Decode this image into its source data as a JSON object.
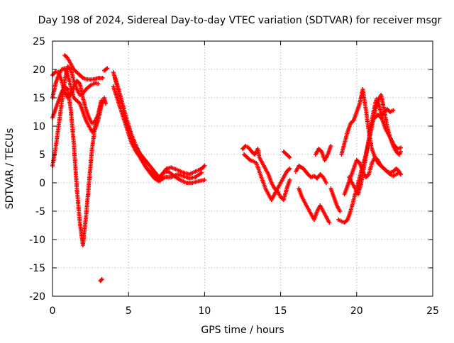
{
  "chart_data": {
    "type": "scatter",
    "title": "Day 198 of 2024, Sidereal Day-to-day VTEC variation (SDTVAR) for receiver msgr",
    "xlabel": "GPS time / hours",
    "ylabel": "SDTVAR / TECUs",
    "xlim": [
      0,
      25
    ],
    "ylim": [
      -20,
      25
    ],
    "xticks": [
      0,
      5,
      10,
      15,
      20,
      25
    ],
    "yticks": [
      -20,
      -15,
      -10,
      -5,
      0,
      5,
      10,
      15,
      20,
      25
    ],
    "grid": true,
    "marker": "+",
    "color": "#ff0000",
    "series": [
      {
        "name": "trace-1",
        "points": [
          [
            0.0,
            3.0
          ],
          [
            0.2,
            6.0
          ],
          [
            0.4,
            10.0
          ],
          [
            0.6,
            14.0
          ],
          [
            0.8,
            18.0
          ],
          [
            1.0,
            20.5
          ],
          [
            1.2,
            20.0
          ],
          [
            1.4,
            18.0
          ],
          [
            1.6,
            16.5
          ],
          [
            1.8,
            15.5
          ],
          [
            2.0,
            15.8
          ],
          [
            2.2,
            16.5
          ],
          [
            2.5,
            17.2
          ],
          [
            2.8,
            17.6
          ],
          [
            3.0,
            17.5
          ]
        ]
      },
      {
        "name": "trace-2",
        "points": [
          [
            0.0,
            11.5
          ],
          [
            0.2,
            13.0
          ],
          [
            0.4,
            14.5
          ],
          [
            0.6,
            16.0
          ],
          [
            0.8,
            17.0
          ],
          [
            1.0,
            16.5
          ],
          [
            1.2,
            13.0
          ],
          [
            1.3,
            10.0
          ],
          [
            1.4,
            7.0
          ],
          [
            1.5,
            3.0
          ],
          [
            1.6,
            -1.0
          ],
          [
            1.7,
            -4.0
          ],
          [
            1.8,
            -7.0
          ],
          [
            1.9,
            -9.0
          ],
          [
            2.0,
            -11.0
          ],
          [
            2.2,
            -6.0
          ],
          [
            2.4,
            0.0
          ],
          [
            2.6,
            6.0
          ],
          [
            2.8,
            10.0
          ],
          [
            3.0,
            12.0
          ],
          [
            3.2,
            14.5
          ]
        ]
      },
      {
        "name": "trace-3",
        "points": [
          [
            0.0,
            15.0
          ],
          [
            0.2,
            17.5
          ],
          [
            0.4,
            19.0
          ],
          [
            0.6,
            20.0
          ],
          [
            0.8,
            20.2
          ],
          [
            1.0,
            19.0
          ],
          [
            1.2,
            17.0
          ],
          [
            1.4,
            15.0
          ],
          [
            1.6,
            14.5
          ],
          [
            1.8,
            14.0
          ],
          [
            2.0,
            12.5
          ],
          [
            2.2,
            11.0
          ],
          [
            2.4,
            10.0
          ],
          [
            2.6,
            9.0
          ],
          [
            2.8,
            9.5
          ],
          [
            3.0,
            11.0
          ],
          [
            3.2,
            13.5
          ],
          [
            3.4,
            15.0
          ],
          [
            3.5,
            14.0
          ]
        ]
      },
      {
        "name": "trace-4",
        "points": [
          [
            0.0,
            19.0
          ],
          [
            0.2,
            19.6
          ],
          [
            0.4,
            19.5
          ],
          [
            0.6,
            18.0
          ],
          [
            0.8,
            16.0
          ],
          [
            1.0,
            15.0
          ],
          [
            1.2,
            15.5
          ],
          [
            1.4,
            17.0
          ],
          [
            1.6,
            18.0
          ],
          [
            1.8,
            17.5
          ],
          [
            2.0,
            15.0
          ],
          [
            2.2,
            13.0
          ],
          [
            2.4,
            11.5
          ],
          [
            2.6,
            10.5
          ],
          [
            2.8,
            10.8
          ],
          [
            3.0,
            12.0
          ],
          [
            3.2,
            14.0
          ]
        ]
      },
      {
        "name": "trace-5",
        "points": [
          [
            0.8,
            22.5
          ],
          [
            1.0,
            22.0
          ],
          [
            1.2,
            21.0
          ],
          [
            1.4,
            20.0
          ],
          [
            1.6,
            19.5
          ],
          [
            1.8,
            19.0
          ],
          [
            2.0,
            18.5
          ],
          [
            2.2,
            18.3
          ],
          [
            2.5,
            18.2
          ],
          [
            2.8,
            18.3
          ],
          [
            3.0,
            18.5
          ],
          [
            3.3,
            18.5
          ]
        ]
      },
      {
        "name": "trace-6",
        "points": [
          [
            3.4,
            19.8
          ],
          [
            3.6,
            20.2
          ]
        ]
      },
      {
        "name": "trace-7",
        "points": [
          [
            3.15,
            -17.3
          ],
          [
            3.25,
            -17.0
          ]
        ]
      },
      {
        "name": "trace-8",
        "points": [
          [
            4.0,
            19.5
          ],
          [
            4.3,
            17.0
          ],
          [
            4.6,
            14.0
          ],
          [
            4.9,
            11.0
          ],
          [
            5.2,
            8.5
          ],
          [
            5.5,
            6.5
          ],
          [
            5.8,
            5.0
          ],
          [
            6.1,
            4.0
          ],
          [
            6.4,
            3.0
          ],
          [
            6.7,
            2.0
          ],
          [
            7.0,
            1.0
          ],
          [
            7.2,
            1.5
          ],
          [
            7.5,
            2.5
          ],
          [
            7.8,
            2.7
          ],
          [
            8.2,
            2.3
          ],
          [
            8.6,
            1.8
          ],
          [
            9.0,
            1.5
          ],
          [
            9.4,
            2.0
          ],
          [
            9.8,
            2.5
          ],
          [
            10.0,
            3.0
          ]
        ]
      },
      {
        "name": "trace-9",
        "points": [
          [
            4.1,
            18.5
          ],
          [
            4.4,
            15.5
          ],
          [
            4.7,
            12.5
          ],
          [
            5.0,
            9.5
          ],
          [
            5.3,
            7.0
          ],
          [
            5.6,
            5.2
          ],
          [
            5.9,
            3.8
          ],
          [
            6.2,
            2.5
          ],
          [
            6.5,
            1.8
          ],
          [
            6.8,
            1.0
          ],
          [
            7.0,
            0.5
          ],
          [
            7.3,
            1.8
          ],
          [
            7.6,
            2.0
          ],
          [
            8.0,
            1.2
          ],
          [
            8.4,
            0.5
          ],
          [
            8.8,
            0.0
          ],
          [
            9.2,
            0.0
          ],
          [
            9.6,
            0.3
          ],
          [
            10.0,
            0.5
          ]
        ]
      },
      {
        "name": "trace-10",
        "points": [
          [
            4.0,
            17.0
          ],
          [
            4.3,
            14.5
          ],
          [
            4.6,
            12.0
          ],
          [
            4.9,
            9.5
          ],
          [
            5.2,
            7.0
          ],
          [
            5.5,
            5.5
          ],
          [
            5.8,
            4.5
          ],
          [
            6.1,
            3.0
          ],
          [
            6.4,
            1.8
          ],
          [
            6.7,
            0.8
          ],
          [
            7.0,
            0.3
          ],
          [
            7.4,
            1.0
          ],
          [
            7.8,
            1.0
          ],
          [
            8.2,
            1.5
          ],
          [
            8.6,
            1.2
          ],
          [
            9.0,
            0.8
          ],
          [
            9.4,
            1.0
          ],
          [
            9.8,
            1.8
          ]
        ]
      },
      {
        "name": "trace-11",
        "points": [
          [
            12.5,
            6.0
          ],
          [
            12.7,
            6.5
          ],
          [
            12.9,
            6.2
          ],
          [
            13.1,
            5.5
          ],
          [
            13.3,
            5.0
          ],
          [
            13.5,
            6.0
          ],
          [
            13.6,
            4.5
          ],
          [
            13.8,
            3.5
          ],
          [
            14.0,
            2.5
          ],
          [
            14.2,
            1.5
          ],
          [
            14.4,
            0.0
          ],
          [
            14.6,
            -1.0
          ],
          [
            14.8,
            -1.5
          ],
          [
            15.0,
            -2.5
          ],
          [
            15.2,
            -3.0
          ],
          [
            15.4,
            -1.0
          ],
          [
            15.6,
            0.5
          ]
        ]
      },
      {
        "name": "trace-12",
        "points": [
          [
            12.6,
            5.0
          ],
          [
            12.8,
            4.5
          ],
          [
            13.0,
            4.0
          ],
          [
            13.2,
            3.8
          ],
          [
            13.4,
            3.5
          ],
          [
            14.0,
            -1.0
          ],
          [
            14.2,
            -2.0
          ],
          [
            14.4,
            -3.0
          ],
          [
            14.6,
            -2.0
          ],
          [
            14.8,
            -1.0
          ],
          [
            15.0,
            0.0
          ],
          [
            15.2,
            1.0
          ],
          [
            15.4,
            2.0
          ],
          [
            15.6,
            2.5
          ]
        ]
      },
      {
        "name": "trace-13",
        "points": [
          [
            15.2,
            5.5
          ],
          [
            15.4,
            5.0
          ],
          [
            15.6,
            4.5
          ]
        ]
      },
      {
        "name": "trace-14",
        "points": [
          [
            16.0,
            2.0
          ],
          [
            16.2,
            3.0
          ],
          [
            16.5,
            2.5
          ],
          [
            16.8,
            1.5
          ],
          [
            17.0,
            1.0
          ],
          [
            17.2,
            1.2
          ],
          [
            17.4,
            0.8
          ],
          [
            17.6,
            1.5
          ],
          [
            17.8,
            1.0
          ],
          [
            18.0,
            0.0
          ]
        ]
      },
      {
        "name": "trace-15",
        "points": [
          [
            16.2,
            -1.0
          ],
          [
            16.4,
            -2.5
          ],
          [
            16.6,
            -3.5
          ],
          [
            16.8,
            -4.5
          ],
          [
            17.0,
            -5.5
          ],
          [
            17.2,
            -6.5
          ],
          [
            17.4,
            -5.0
          ],
          [
            17.6,
            -4.0
          ],
          [
            17.8,
            -5.0
          ],
          [
            18.0,
            -6.0
          ],
          [
            18.2,
            -7.0
          ]
        ]
      },
      {
        "name": "trace-16",
        "points": [
          [
            17.3,
            5.0
          ],
          [
            17.5,
            6.0
          ],
          [
            17.7,
            5.5
          ],
          [
            17.9,
            4.0
          ],
          [
            18.1,
            5.0
          ],
          [
            18.3,
            6.5
          ]
        ]
      },
      {
        "name": "trace-17",
        "points": [
          [
            18.3,
            -1.0
          ],
          [
            18.5,
            -2.5
          ],
          [
            18.7,
            -4.0
          ],
          [
            18.9,
            -5.0
          ]
        ]
      },
      {
        "name": "trace-18",
        "points": [
          [
            18.8,
            -6.5
          ],
          [
            19.0,
            -6.8
          ],
          [
            19.2,
            -7.0
          ],
          [
            19.4,
            -6.5
          ],
          [
            19.6,
            -5.0
          ],
          [
            19.8,
            -3.0
          ],
          [
            20.0,
            -1.0
          ],
          [
            20.2,
            1.0
          ],
          [
            20.4,
            3.0
          ],
          [
            20.6,
            5.0
          ],
          [
            20.8,
            7.5
          ],
          [
            21.0,
            10.0
          ],
          [
            21.2,
            12.5
          ],
          [
            21.4,
            14.5
          ],
          [
            21.6,
            15.5
          ],
          [
            21.8,
            13.0
          ],
          [
            22.0,
            10.0
          ],
          [
            22.2,
            8.0
          ],
          [
            22.4,
            6.5
          ],
          [
            22.6,
            5.5
          ],
          [
            22.8,
            5.0
          ],
          [
            22.9,
            5.5
          ]
        ]
      },
      {
        "name": "trace-19",
        "points": [
          [
            19.0,
            5.0
          ],
          [
            19.2,
            7.0
          ],
          [
            19.4,
            9.0
          ],
          [
            19.6,
            10.5
          ],
          [
            19.8,
            11.0
          ],
          [
            20.0,
            12.5
          ],
          [
            20.2,
            14.0
          ],
          [
            20.4,
            16.5
          ],
          [
            20.6,
            13.0
          ],
          [
            20.8,
            9.0
          ],
          [
            21.0,
            6.0
          ],
          [
            21.2,
            4.5
          ],
          [
            21.4,
            3.5
          ],
          [
            21.6,
            3.0
          ],
          [
            21.8,
            2.5
          ],
          [
            22.0,
            2.0
          ],
          [
            22.2,
            1.8
          ],
          [
            22.4,
            2.0
          ],
          [
            22.6,
            2.5
          ],
          [
            22.8,
            2.0
          ]
        ]
      },
      {
        "name": "trace-20",
        "points": [
          [
            19.5,
            1.0
          ],
          [
            19.7,
            0.0
          ],
          [
            19.9,
            -1.0
          ],
          [
            20.1,
            -2.0
          ],
          [
            20.3,
            0.0
          ],
          [
            20.5,
            3.0
          ],
          [
            20.7,
            6.0
          ],
          [
            20.9,
            9.5
          ],
          [
            21.1,
            12.5
          ],
          [
            21.3,
            14.8
          ],
          [
            21.5,
            13.5
          ],
          [
            21.7,
            11.0
          ],
          [
            21.9,
            9.5
          ],
          [
            22.1,
            8.5
          ],
          [
            22.3,
            7.5
          ],
          [
            22.5,
            6.5
          ],
          [
            22.7,
            6.0
          ],
          [
            22.9,
            6.2
          ]
        ]
      },
      {
        "name": "trace-21",
        "points": [
          [
            19.2,
            -2.0
          ],
          [
            19.4,
            -0.5
          ],
          [
            19.6,
            1.0
          ],
          [
            19.8,
            2.5
          ],
          [
            20.0,
            4.0
          ],
          [
            20.2,
            3.5
          ],
          [
            20.4,
            2.0
          ],
          [
            20.6,
            1.0
          ],
          [
            20.8,
            1.5
          ],
          [
            21.0,
            3.5
          ],
          [
            21.2,
            4.5
          ],
          [
            21.4,
            4.0
          ],
          [
            21.6,
            3.0
          ],
          [
            21.8,
            2.5
          ],
          [
            22.0,
            2.0
          ],
          [
            22.2,
            1.5
          ],
          [
            22.4,
            1.2
          ],
          [
            22.6,
            1.5
          ],
          [
            22.8,
            1.8
          ],
          [
            22.9,
            1.5
          ]
        ]
      },
      {
        "name": "trace-22",
        "points": [
          [
            21.2,
            11.5
          ],
          [
            21.4,
            12.0
          ],
          [
            21.6,
            11.5
          ],
          [
            21.8,
            12.5
          ],
          [
            22.0,
            13.0
          ],
          [
            22.2,
            12.5
          ],
          [
            22.4,
            12.8
          ]
        ]
      }
    ]
  }
}
